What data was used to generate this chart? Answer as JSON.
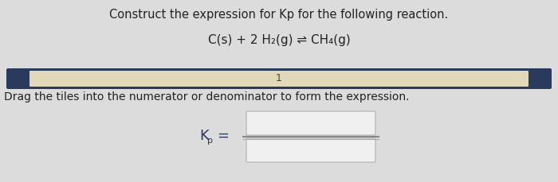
{
  "title": "Construct the expression for Kp for the following reaction.",
  "reaction": "C(s) + 2 H₂(g) ⇌ CH₄(g)",
  "bar_label": "1",
  "drag_text": "Drag the tiles into the numerator or denominator to form the expression.",
  "bg_color": "#dcdcdc",
  "bar_bg_color": "#2a3a5c",
  "bar_fill_color": "#e0d8b8",
  "bar_text_color": "#444444",
  "box_edge_color": "#b0b0b0",
  "box_fill_color": "#f0f0f0",
  "frac_line_color": "#888888",
  "text_color": "#222222",
  "kp_color": "#2a3a5c",
  "title_fontsize": 10.5,
  "reaction_fontsize": 11,
  "drag_fontsize": 10,
  "kp_fontsize": 13
}
